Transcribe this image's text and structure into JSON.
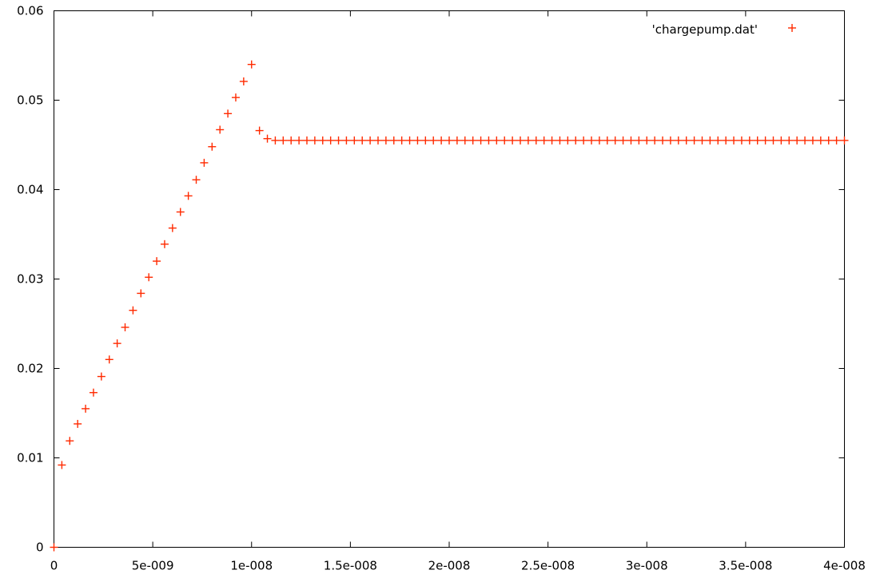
{
  "chart_data": {
    "type": "scatter",
    "title": "",
    "xlabel": "",
    "ylabel": "",
    "xlim": [
      0,
      4e-08
    ],
    "ylim": [
      0,
      0.06
    ],
    "grid": false,
    "legend_position": "top-right",
    "marker": "plus",
    "point_color": "#ff2a00",
    "x_ticks": [
      {
        "value": 0,
        "label": "0"
      },
      {
        "value": 5e-09,
        "label": "5e-009"
      },
      {
        "value": 1e-08,
        "label": "1e-008"
      },
      {
        "value": 1.5e-08,
        "label": "1.5e-008"
      },
      {
        "value": 2e-08,
        "label": "2e-008"
      },
      {
        "value": 2.5e-08,
        "label": "2.5e-008"
      },
      {
        "value": 3e-08,
        "label": "3e-008"
      },
      {
        "value": 3.5e-08,
        "label": "3.5e-008"
      },
      {
        "value": 4e-08,
        "label": "4e-008"
      }
    ],
    "y_ticks": [
      {
        "value": 0,
        "label": "0"
      },
      {
        "value": 0.01,
        "label": "0.01"
      },
      {
        "value": 0.02,
        "label": "0.02"
      },
      {
        "value": 0.03,
        "label": "0.03"
      },
      {
        "value": 0.04,
        "label": "0.04"
      },
      {
        "value": 0.05,
        "label": "0.05"
      },
      {
        "value": 0.06,
        "label": "0.06"
      }
    ],
    "series": [
      {
        "name": "'chargepump.dat'",
        "x": [
          0,
          4e-10,
          8e-10,
          1.2e-09,
          1.6e-09,
          2e-09,
          2.4e-09,
          2.8e-09,
          3.2e-09,
          3.6e-09,
          4e-09,
          4.4e-09,
          4.8e-09,
          5.2e-09,
          5.6e-09,
          6e-09,
          6.4e-09,
          6.8e-09,
          7.2e-09,
          7.6e-09,
          8e-09,
          8.4e-09,
          8.8e-09,
          9.2e-09,
          9.6e-09,
          1e-08,
          1.04e-08,
          1.08e-08,
          1.12e-08,
          1.16e-08,
          1.2e-08,
          1.24e-08,
          1.28e-08,
          1.32e-08,
          1.36e-08,
          1.4e-08,
          1.44e-08,
          1.48e-08,
          1.52e-08,
          1.56e-08,
          1.6e-08,
          1.64e-08,
          1.68e-08,
          1.72e-08,
          1.76e-08,
          1.8e-08,
          1.84e-08,
          1.88e-08,
          1.92e-08,
          1.96e-08,
          2e-08,
          2.04e-08,
          2.08e-08,
          2.12e-08,
          2.16e-08,
          2.2e-08,
          2.24e-08,
          2.28e-08,
          2.32e-08,
          2.36e-08,
          2.4e-08,
          2.44e-08,
          2.48e-08,
          2.52e-08,
          2.56e-08,
          2.6e-08,
          2.64e-08,
          2.68e-08,
          2.72e-08,
          2.76e-08,
          2.8e-08,
          2.84e-08,
          2.88e-08,
          2.92e-08,
          2.96e-08,
          3e-08,
          3.04e-08,
          3.08e-08,
          3.12e-08,
          3.16e-08,
          3.2e-08,
          3.24e-08,
          3.28e-08,
          3.32e-08,
          3.36e-08,
          3.4e-08,
          3.44e-08,
          3.48e-08,
          3.52e-08,
          3.56e-08,
          3.6e-08,
          3.64e-08,
          3.68e-08,
          3.72e-08,
          3.76e-08,
          3.8e-08,
          3.84e-08,
          3.88e-08,
          3.92e-08,
          3.96e-08,
          4e-08
        ],
        "y": [
          0,
          0.0092,
          0.0119,
          0.0138,
          0.0155,
          0.0173,
          0.0191,
          0.021,
          0.0228,
          0.0246,
          0.0265,
          0.0284,
          0.0302,
          0.032,
          0.0339,
          0.0357,
          0.0375,
          0.0393,
          0.0411,
          0.043,
          0.0448,
          0.0467,
          0.0485,
          0.0503,
          0.0521,
          0.054,
          0.0466,
          0.0457,
          0.0455,
          0.0455,
          0.0455,
          0.0455,
          0.0455,
          0.0455,
          0.0455,
          0.0455,
          0.0455,
          0.0455,
          0.0455,
          0.0455,
          0.0455,
          0.0455,
          0.0455,
          0.0455,
          0.0455,
          0.0455,
          0.0455,
          0.0455,
          0.0455,
          0.0455,
          0.0455,
          0.0455,
          0.0455,
          0.0455,
          0.0455,
          0.0455,
          0.0455,
          0.0455,
          0.0455,
          0.0455,
          0.0455,
          0.0455,
          0.0455,
          0.0455,
          0.0455,
          0.0455,
          0.0455,
          0.0455,
          0.0455,
          0.0455,
          0.0455,
          0.0455,
          0.0455,
          0.0455,
          0.0455,
          0.0455,
          0.0455,
          0.0455,
          0.0455,
          0.0455,
          0.0455,
          0.0455,
          0.0455,
          0.0455,
          0.0455,
          0.0455,
          0.0455,
          0.0455,
          0.0455,
          0.0455,
          0.0455,
          0.0455,
          0.0455,
          0.0455,
          0.0455,
          0.0455,
          0.0455,
          0.0455,
          0.0455,
          0.0455,
          0.0455
        ]
      }
    ]
  }
}
